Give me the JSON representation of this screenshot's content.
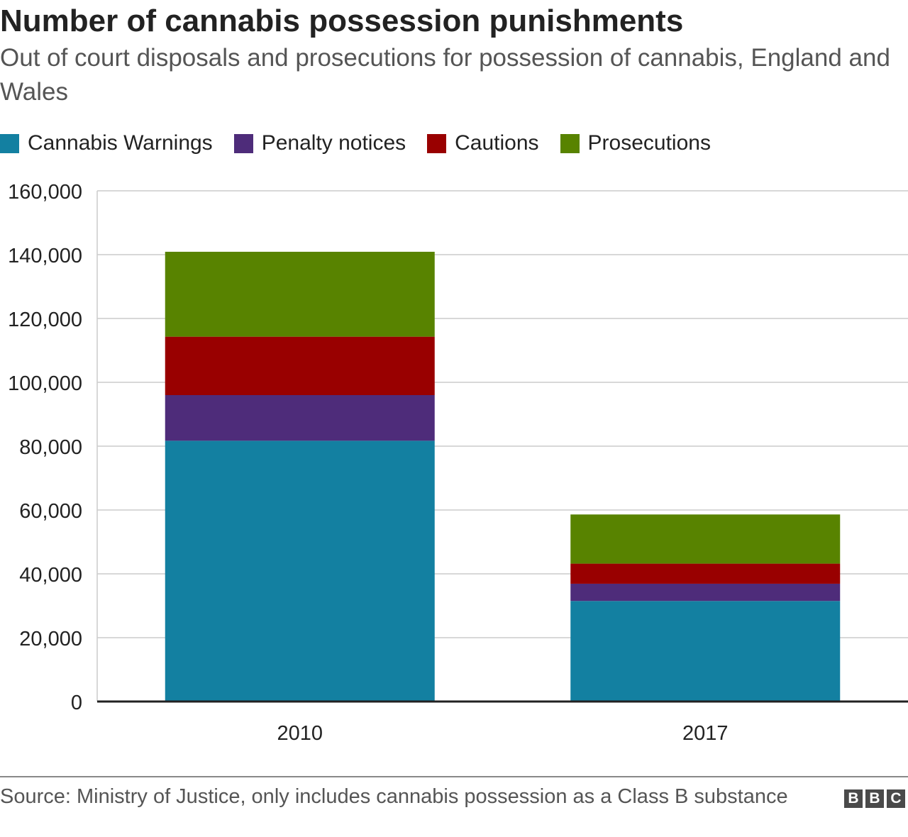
{
  "chart_data": {
    "type": "bar",
    "stacked": true,
    "title": "Number of cannabis possession punishments",
    "subtitle": "Out of court disposals and prosecutions for possession of cannabis, England and Wales",
    "categories": [
      "2010",
      "2017"
    ],
    "series": [
      {
        "name": "Cannabis Warnings",
        "color": "#1380A1",
        "values": [
          81700,
          31500
        ]
      },
      {
        "name": "Penalty notices",
        "color": "#4E2C7A",
        "values": [
          14300,
          5400
        ]
      },
      {
        "name": "Cautions",
        "color": "#990000",
        "values": [
          18300,
          6300
        ]
      },
      {
        "name": "Prosecutions",
        "color": "#588300",
        "values": [
          26600,
          15400
        ]
      }
    ],
    "ylim": [
      0,
      160000
    ],
    "yticks": [
      0,
      20000,
      40000,
      60000,
      80000,
      100000,
      120000,
      140000,
      160000
    ],
    "ytick_labels": [
      "0",
      "20,000",
      "40,000",
      "60,000",
      "80,000",
      "100,000",
      "120,000",
      "140,000",
      "160,000"
    ],
    "xlabel": "",
    "ylabel": "",
    "grid": true,
    "legend_position": "top-left"
  },
  "footer": {
    "source": "Source: Ministry of Justice, only includes cannabis possession as a Class B substance",
    "logo_letters": [
      "B",
      "B",
      "C"
    ]
  }
}
